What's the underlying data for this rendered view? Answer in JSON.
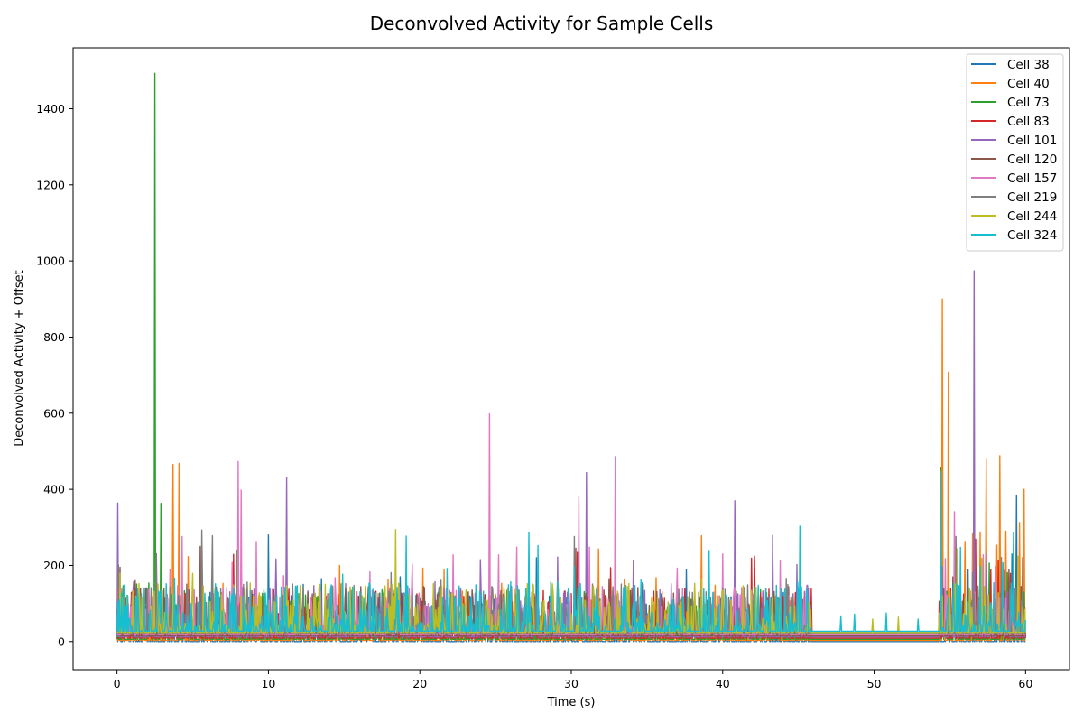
{
  "chart_data": {
    "type": "line",
    "title": "Deconvolved Activity for Sample Cells",
    "xlabel": "Time (s)",
    "ylabel": "Deconvolved Activity + Offset",
    "xlim": [
      -2.9,
      62.9
    ],
    "ylim": [
      -74,
      1560
    ],
    "xticks": [
      0,
      10,
      20,
      30,
      40,
      50,
      60
    ],
    "yticks": [
      0,
      200,
      400,
      600,
      800,
      1000,
      1200,
      1400
    ],
    "grid": false,
    "legend_position": "top-right",
    "series": [
      {
        "name": "Cell 38",
        "color": "#1f77b4",
        "offset": 0,
        "peaks": [
          [
            0.1,
            90
          ],
          [
            1.2,
            60
          ],
          [
            3.5,
            80
          ],
          [
            10.0,
            280
          ],
          [
            12.3,
            150
          ],
          [
            13.5,
            165
          ],
          [
            16.8,
            100
          ],
          [
            18.7,
            170
          ],
          [
            20.9,
            150
          ],
          [
            24.3,
            110
          ],
          [
            27.7,
            220
          ],
          [
            34.7,
            155
          ],
          [
            37.6,
            190
          ],
          [
            40.2,
            100
          ],
          [
            42.7,
            120
          ],
          [
            45.6,
            148
          ],
          [
            54.8,
            120
          ],
          [
            56.2,
            190
          ],
          [
            59.1,
            230
          ],
          [
            59.4,
            383
          ],
          [
            59.8,
            150
          ]
        ]
      },
      {
        "name": "Cell 40",
        "color": "#ff7f0e",
        "offset": 3,
        "peaks": [
          [
            0.5,
            90
          ],
          [
            3.7,
            462
          ],
          [
            4.1,
            465
          ],
          [
            4.7,
            220
          ],
          [
            7.0,
            150
          ],
          [
            14.7,
            197
          ],
          [
            17.9,
            160
          ],
          [
            20.2,
            190
          ],
          [
            21.6,
            185
          ],
          [
            25.4,
            150
          ],
          [
            29.1,
            170
          ],
          [
            31.8,
            240
          ],
          [
            33.5,
            160
          ],
          [
            35.6,
            165
          ],
          [
            38.6,
            275
          ],
          [
            39.5,
            145
          ],
          [
            54.5,
            897
          ],
          [
            54.9,
            705
          ],
          [
            56.0,
            260
          ],
          [
            56.5,
            280
          ],
          [
            57.0,
            285
          ],
          [
            57.4,
            477
          ],
          [
            58.1,
            250
          ],
          [
            58.3,
            485
          ],
          [
            58.7,
            287
          ],
          [
            59.6,
            310
          ],
          [
            59.9,
            397
          ]
        ]
      },
      {
        "name": "Cell 73",
        "color": "#2ca02c",
        "offset": 6,
        "peaks": [
          [
            0.4,
            140
          ],
          [
            1.3,
            145
          ],
          [
            2.1,
            148
          ],
          [
            2.5,
            1487
          ],
          [
            2.9,
            357
          ],
          [
            5.5,
            100
          ],
          [
            7.9,
            234
          ],
          [
            12.0,
            120
          ],
          [
            17.5,
            130
          ],
          [
            26.5,
            90
          ],
          [
            27.0,
            90
          ],
          [
            36.8,
            90
          ],
          [
            42.5,
            130
          ],
          [
            54.4,
            450
          ],
          [
            55.5,
            180
          ],
          [
            57.6,
            200
          ],
          [
            58.8,
            175
          ]
        ]
      },
      {
        "name": "Cell 83",
        "color": "#d62728",
        "offset": 9,
        "peaks": [
          [
            1.3,
            130
          ],
          [
            1.8,
            90
          ],
          [
            3.3,
            115
          ],
          [
            7.7,
            220
          ],
          [
            14.2,
            100
          ],
          [
            16.2,
            95
          ],
          [
            18.2,
            125
          ],
          [
            22.4,
            100
          ],
          [
            25.5,
            115
          ],
          [
            28.5,
            95
          ],
          [
            30.4,
            225
          ],
          [
            32.6,
            185
          ],
          [
            37.5,
            130
          ],
          [
            41.9,
            210
          ],
          [
            42.1,
            215
          ],
          [
            44.0,
            110
          ],
          [
            56.7,
            260
          ],
          [
            57.7,
            180
          ],
          [
            58.2,
            205
          ],
          [
            59.0,
            170
          ]
        ]
      },
      {
        "name": "Cell 101",
        "color": "#9467bd",
        "offset": 12,
        "peaks": [
          [
            0.05,
            352
          ],
          [
            1.1,
            145
          ],
          [
            4.5,
            60
          ],
          [
            8.3,
            130
          ],
          [
            10.5,
            205
          ],
          [
            11.2,
            418
          ],
          [
            13.0,
            135
          ],
          [
            15.1,
            140
          ],
          [
            21.0,
            145
          ],
          [
            24.0,
            203
          ],
          [
            29.1,
            210
          ],
          [
            29.6,
            120
          ],
          [
            31.0,
            432
          ],
          [
            34.1,
            200
          ],
          [
            36.6,
            140
          ],
          [
            40.8,
            358
          ],
          [
            43.3,
            267
          ],
          [
            44.9,
            190
          ],
          [
            54.5,
            185
          ],
          [
            56.6,
            962
          ],
          [
            57.4,
            225
          ],
          [
            58.6,
            175
          ]
        ]
      },
      {
        "name": "Cell 120",
        "color": "#8c564b",
        "offset": 15,
        "peaks": [
          [
            0.2,
            180
          ],
          [
            1.2,
            145
          ],
          [
            5.5,
            235
          ],
          [
            7.3,
            100
          ],
          [
            10.0,
            90
          ],
          [
            12.9,
            110
          ],
          [
            17.0,
            115
          ],
          [
            19.5,
            90
          ],
          [
            23.6,
            80
          ],
          [
            28.2,
            90
          ],
          [
            30.3,
            230
          ],
          [
            31.5,
            110
          ],
          [
            32.5,
            150
          ],
          [
            39.4,
            100
          ],
          [
            42.9,
            100
          ],
          [
            45.3,
            95
          ],
          [
            55.2,
            155
          ],
          [
            57.1,
            200
          ],
          [
            58.9,
            175
          ],
          [
            59.7,
            130
          ]
        ]
      },
      {
        "name": "Cell 157",
        "color": "#e377c2",
        "offset": 18,
        "peaks": [
          [
            0.3,
            120
          ],
          [
            3.5,
            170
          ],
          [
            4.3,
            258
          ],
          [
            7.6,
            190
          ],
          [
            8.0,
            455
          ],
          [
            8.2,
            380
          ],
          [
            9.2,
            245
          ],
          [
            11.0,
            155
          ],
          [
            14.4,
            150
          ],
          [
            16.7,
            165
          ],
          [
            19.5,
            185
          ],
          [
            22.2,
            210
          ],
          [
            24.6,
            580
          ],
          [
            25.2,
            210
          ],
          [
            26.4,
            230
          ],
          [
            30.5,
            362
          ],
          [
            31.2,
            230
          ],
          [
            32.9,
            468
          ],
          [
            37.0,
            175
          ],
          [
            40.0,
            212
          ],
          [
            43.8,
            195
          ],
          [
            54.7,
            200
          ],
          [
            55.3,
            323
          ],
          [
            57.2,
            210
          ],
          [
            58.0,
            180
          ]
        ]
      },
      {
        "name": "Cell 219",
        "color": "#7f7f7f",
        "offset": 21,
        "peaks": [
          [
            0.1,
            180
          ],
          [
            2.6,
            210
          ],
          [
            5.6,
            272
          ],
          [
            6.3,
            257
          ],
          [
            8.6,
            135
          ],
          [
            11.6,
            130
          ],
          [
            14.8,
            130
          ],
          [
            18.1,
            160
          ],
          [
            21.4,
            140
          ],
          [
            24.8,
            120
          ],
          [
            27.1,
            110
          ],
          [
            30.2,
            255
          ],
          [
            31.4,
            130
          ],
          [
            33.3,
            130
          ],
          [
            40.4,
            90
          ],
          [
            44.2,
            145
          ],
          [
            55.4,
            255
          ],
          [
            56.5,
            160
          ],
          [
            58.4,
            200
          ],
          [
            59.8,
            200
          ]
        ]
      },
      {
        "name": "Cell 244",
        "color": "#bcbd22",
        "offset": 24,
        "peaks": [
          [
            0.2,
            155
          ],
          [
            1.5,
            80
          ],
          [
            5.0,
            155
          ],
          [
            6.9,
            100
          ],
          [
            9.5,
            95
          ],
          [
            13.9,
            60
          ],
          [
            15.6,
            115
          ],
          [
            18.4,
            270
          ],
          [
            19.0,
            95
          ],
          [
            23.0,
            60
          ],
          [
            26.4,
            110
          ],
          [
            29.3,
            90
          ],
          [
            35.3,
            90
          ],
          [
            38.6,
            140
          ],
          [
            45.8,
            60
          ],
          [
            49.9,
            35
          ],
          [
            51.6,
            40
          ],
          [
            55.5,
            220
          ],
          [
            57.1,
            195
          ],
          [
            59.5,
            200
          ]
        ]
      },
      {
        "name": "Cell 324",
        "color": "#17becf",
        "offset": 27,
        "peaks": [
          [
            0.3,
            100
          ],
          [
            3.8,
            140
          ],
          [
            9.8,
            100
          ],
          [
            11.9,
            120
          ],
          [
            14.9,
            150
          ],
          [
            16.9,
            110
          ],
          [
            19.1,
            250
          ],
          [
            21.8,
            165
          ],
          [
            24.2,
            105
          ],
          [
            26.0,
            130
          ],
          [
            27.2,
            260
          ],
          [
            27.8,
            225
          ],
          [
            28.3,
            45
          ],
          [
            30.2,
            170
          ],
          [
            34.6,
            135
          ],
          [
            39.1,
            212
          ],
          [
            40.2,
            95
          ],
          [
            43.1,
            90
          ],
          [
            45.1,
            276
          ],
          [
            47.8,
            40
          ],
          [
            48.7,
            45
          ],
          [
            50.8,
            48
          ],
          [
            52.9,
            32
          ],
          [
            54.4,
            420
          ],
          [
            55.7,
            220
          ],
          [
            57.0,
            170
          ],
          [
            58.5,
            180
          ],
          [
            59.2,
            260
          ]
        ]
      }
    ]
  }
}
